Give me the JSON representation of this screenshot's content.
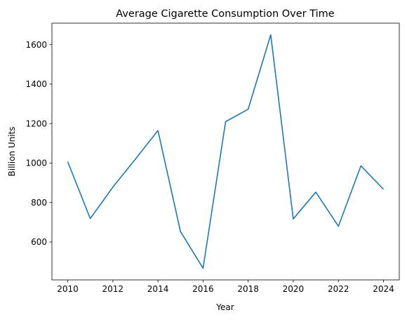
{
  "chart_data": {
    "type": "line",
    "title": "Average Cigarette Consumption Over Time",
    "xlabel": "Year",
    "ylabel": "Billion Units",
    "x": [
      2010,
      2011,
      2012,
      2013,
      2014,
      2015,
      2016,
      2017,
      2018,
      2019,
      2020,
      2021,
      2022,
      2023,
      2024
    ],
    "series": [
      {
        "values": [
          1007,
          719,
          878,
          1020,
          1165,
          653,
          467,
          1210,
          1273,
          1650,
          717,
          853,
          680,
          986,
          867
        ],
        "color": "#1f77b4"
      }
    ],
    "xticks": [
      2010,
      2012,
      2014,
      2016,
      2018,
      2020,
      2022,
      2024
    ],
    "yticks": [
      600,
      800,
      1000,
      1200,
      1400,
      1600
    ],
    "xlim": [
      2009.3,
      2024.7
    ],
    "ylim": [
      408,
      1709
    ],
    "grid": false,
    "legend": "none"
  }
}
